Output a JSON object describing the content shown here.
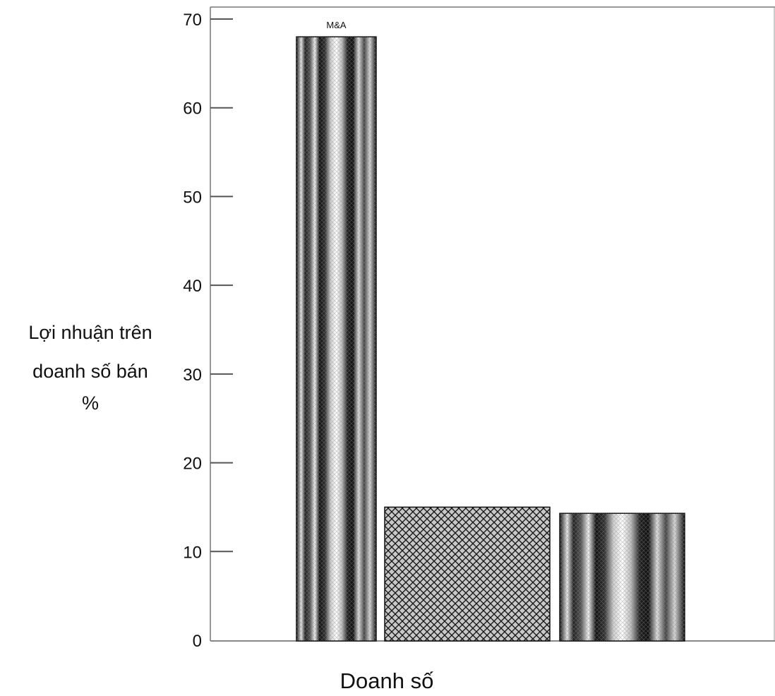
{
  "chart_data": {
    "type": "bar",
    "title": "",
    "xlabel": "Doanh số",
    "ylabel_lines": [
      "Lợi nhuận trên",
      "doanh số bán",
      "%"
    ],
    "ylim": [
      0,
      70
    ],
    "yticks": [
      0,
      10,
      20,
      30,
      40,
      50,
      60,
      70
    ],
    "ytick_labels": [
      "0",
      "10",
      "20",
      "30",
      "40",
      "50",
      "60",
      "70"
    ],
    "categories": [
      "M&A",
      "",
      ""
    ],
    "values": [
      68,
      15,
      14.3
    ],
    "data_labels": [
      "M&A",
      "",
      ""
    ],
    "patterns": [
      "vertical-stripes",
      "crosshatch",
      "vertical-stripes"
    ],
    "grid": false,
    "legend": "none"
  }
}
